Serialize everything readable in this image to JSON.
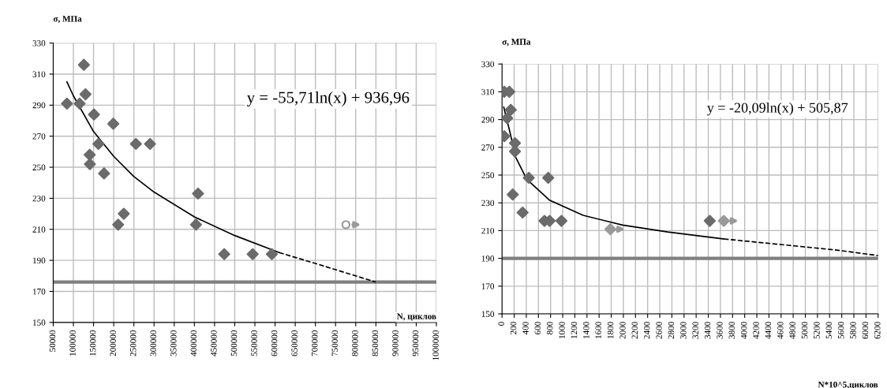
{
  "chart_data": [
    {
      "type": "scatter",
      "xlabel": "N, циклов",
      "ylabel": "σ, МПа",
      "xlim": [
        50000,
        1000000
      ],
      "xticks": [
        50000,
        100000,
        150000,
        200000,
        250000,
        300000,
        350000,
        400000,
        450000,
        500000,
        550000,
        600000,
        650000,
        700000,
        750000,
        800000,
        850000,
        900000,
        950000,
        1000000
      ],
      "ylim": [
        150,
        330
      ],
      "yticks": [
        150,
        170,
        190,
        210,
        230,
        250,
        270,
        290,
        310,
        330
      ],
      "grid": true,
      "annotations": [
        "y = -55,71ln(x) + 936,96"
      ],
      "ref_lines": [
        {
          "axis": "y",
          "value": 176,
          "color": "#808080"
        }
      ],
      "series": [
        {
          "color": "#6b6b6b",
          "marker": "diamond",
          "x": [
            84000,
            115500,
            126000,
            130000,
            151000,
            199000,
            162000,
            140500,
            141000,
            176000,
            255000,
            290000,
            409000,
            404000,
            211000,
            225000,
            474000,
            544500,
            592000
          ],
          "values": [
            291,
            291,
            316,
            297,
            284,
            278,
            265,
            258,
            252,
            246,
            265,
            265,
            233,
            213,
            213,
            220,
            194,
            194,
            194
          ]
        },
        {
          "color": "#9a9a9a",
          "marker": "circle",
          "x": [
            775700
          ],
          "values": [
            213
          ]
        },
        {
          "type": "line",
          "color": "#000000",
          "line_style": "solid",
          "x": [
            84000,
            100000,
            150000,
            200000,
            250000,
            300000,
            400000,
            500000,
            610000
          ],
          "values": [
            305,
            296,
            273,
            257,
            244,
            234,
            218,
            206,
            195
          ]
        },
        {
          "type": "line",
          "color": "#000000",
          "line_style": "dashed",
          "x": [
            610000,
            700000,
            850000
          ],
          "values": [
            195,
            188,
            176
          ]
        }
      ]
    },
    {
      "type": "scatter",
      "xlabel": "N*10^5,циклов",
      "ylabel": "σ, МПа",
      "xlim": [
        0,
        6200
      ],
      "xticks": [
        0,
        200,
        400,
        600,
        800,
        1000,
        1200,
        1400,
        1600,
        1800,
        2000,
        2200,
        2400,
        2600,
        2800,
        3000,
        3200,
        3400,
        3600,
        3800,
        4000,
        4200,
        4400,
        4600,
        4800,
        5000,
        5200,
        5400,
        5600,
        5800,
        6000,
        6200
      ],
      "ylim": [
        150,
        330
      ],
      "yticks": [
        150,
        170,
        190,
        210,
        230,
        250,
        270,
        290,
        310,
        330
      ],
      "grid": true,
      "annotations": [
        "y = -20,09ln(x) + 505,87"
      ],
      "ref_lines": [
        {
          "axis": "y",
          "value": 190,
          "color": "#808080"
        }
      ],
      "series": [
        {
          "color": "#6b6b6b",
          "marker": "diamond",
          "x": [
            37,
            120,
            144,
            84,
            37,
            213,
            213,
            176,
            441,
            761,
            339,
            700,
            784,
            979,
            3424
          ],
          "values": [
            310,
            310,
            297,
            291,
            278,
            273,
            267,
            236,
            248,
            248,
            223,
            217,
            217,
            217,
            217
          ]
        },
        {
          "color": "#9a9a9a",
          "marker": "diamond",
          "x": [
            1786,
            3656
          ],
          "values": [
            211,
            217
          ]
        },
        {
          "type": "line",
          "color": "#000000",
          "line_style": "solid",
          "x": [
            28,
            130,
            223,
            408,
            780,
            1336,
            1986,
            2729,
            3657
          ],
          "values": [
            299,
            281,
            263,
            247,
            232,
            221,
            214,
            209,
            204
          ]
        },
        {
          "type": "line",
          "color": "#000000",
          "line_style": "dashed",
          "x": [
            3657,
            4585,
            5513,
            6200
          ],
          "values": [
            204,
            200,
            196,
            192
          ]
        }
      ]
    }
  ]
}
